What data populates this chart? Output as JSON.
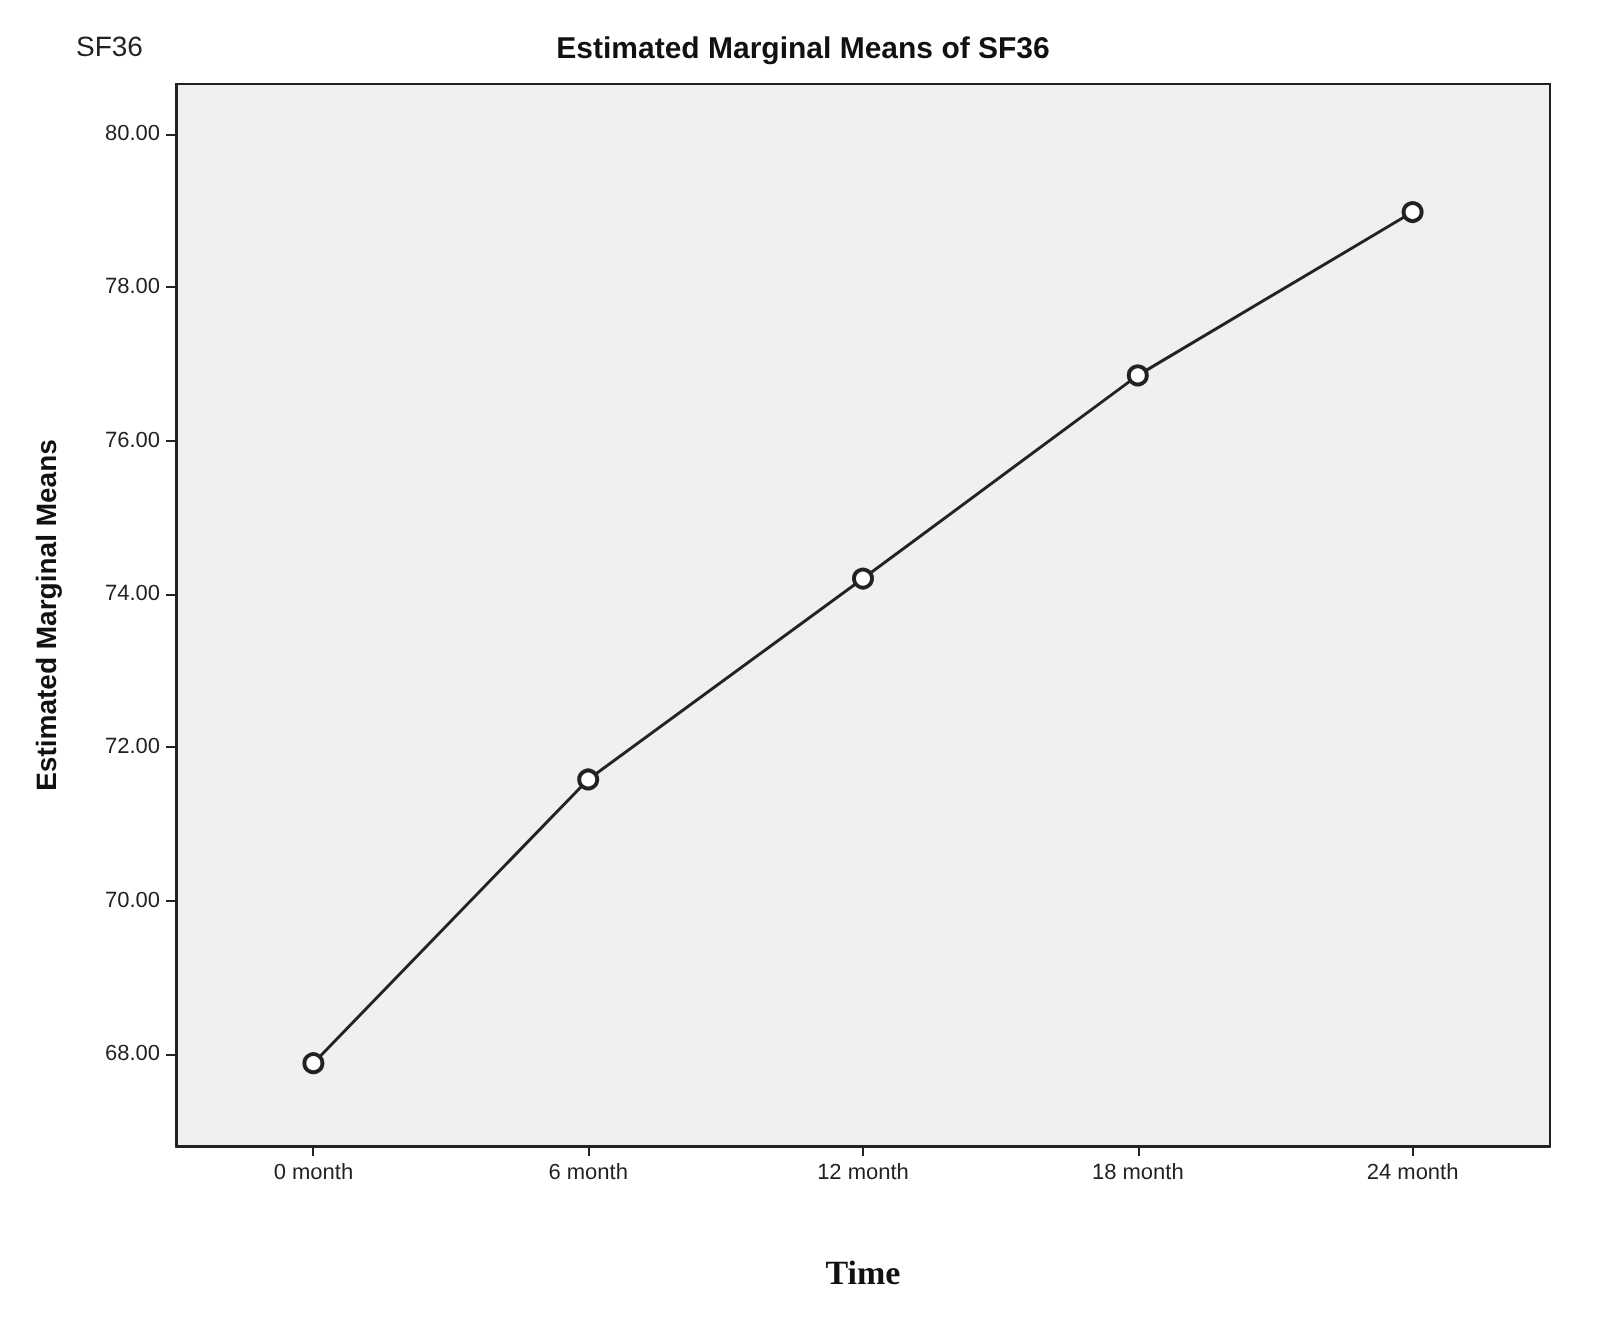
{
  "chart_data": {
    "type": "line",
    "title": "Estimated Marginal Means of SF36",
    "annotations": [
      "SF36"
    ],
    "xlabel": "Time",
    "ylabel": "Estimated Marginal Means",
    "categories": [
      "0 month",
      "6 month",
      "12 month",
      "18 month",
      "24 month"
    ],
    "series": [
      {
        "color": "#222222",
        "values": [
          67.88,
          71.58,
          74.2,
          76.85,
          78.98
        ]
      }
    ],
    "ylim": [
      66.8,
      80.65
    ],
    "yticks": [
      {
        "value": 68,
        "label": "68.00"
      },
      {
        "value": 70,
        "label": "70.00"
      },
      {
        "value": 72,
        "label": "72.00"
      },
      {
        "value": 74,
        "label": "74.00"
      },
      {
        "value": 76,
        "label": "76.00"
      },
      {
        "value": 78,
        "label": "78.00"
      },
      {
        "value": 80,
        "label": "80.00"
      }
    ],
    "grid": false,
    "marker": "circle",
    "line_style": "solid"
  }
}
